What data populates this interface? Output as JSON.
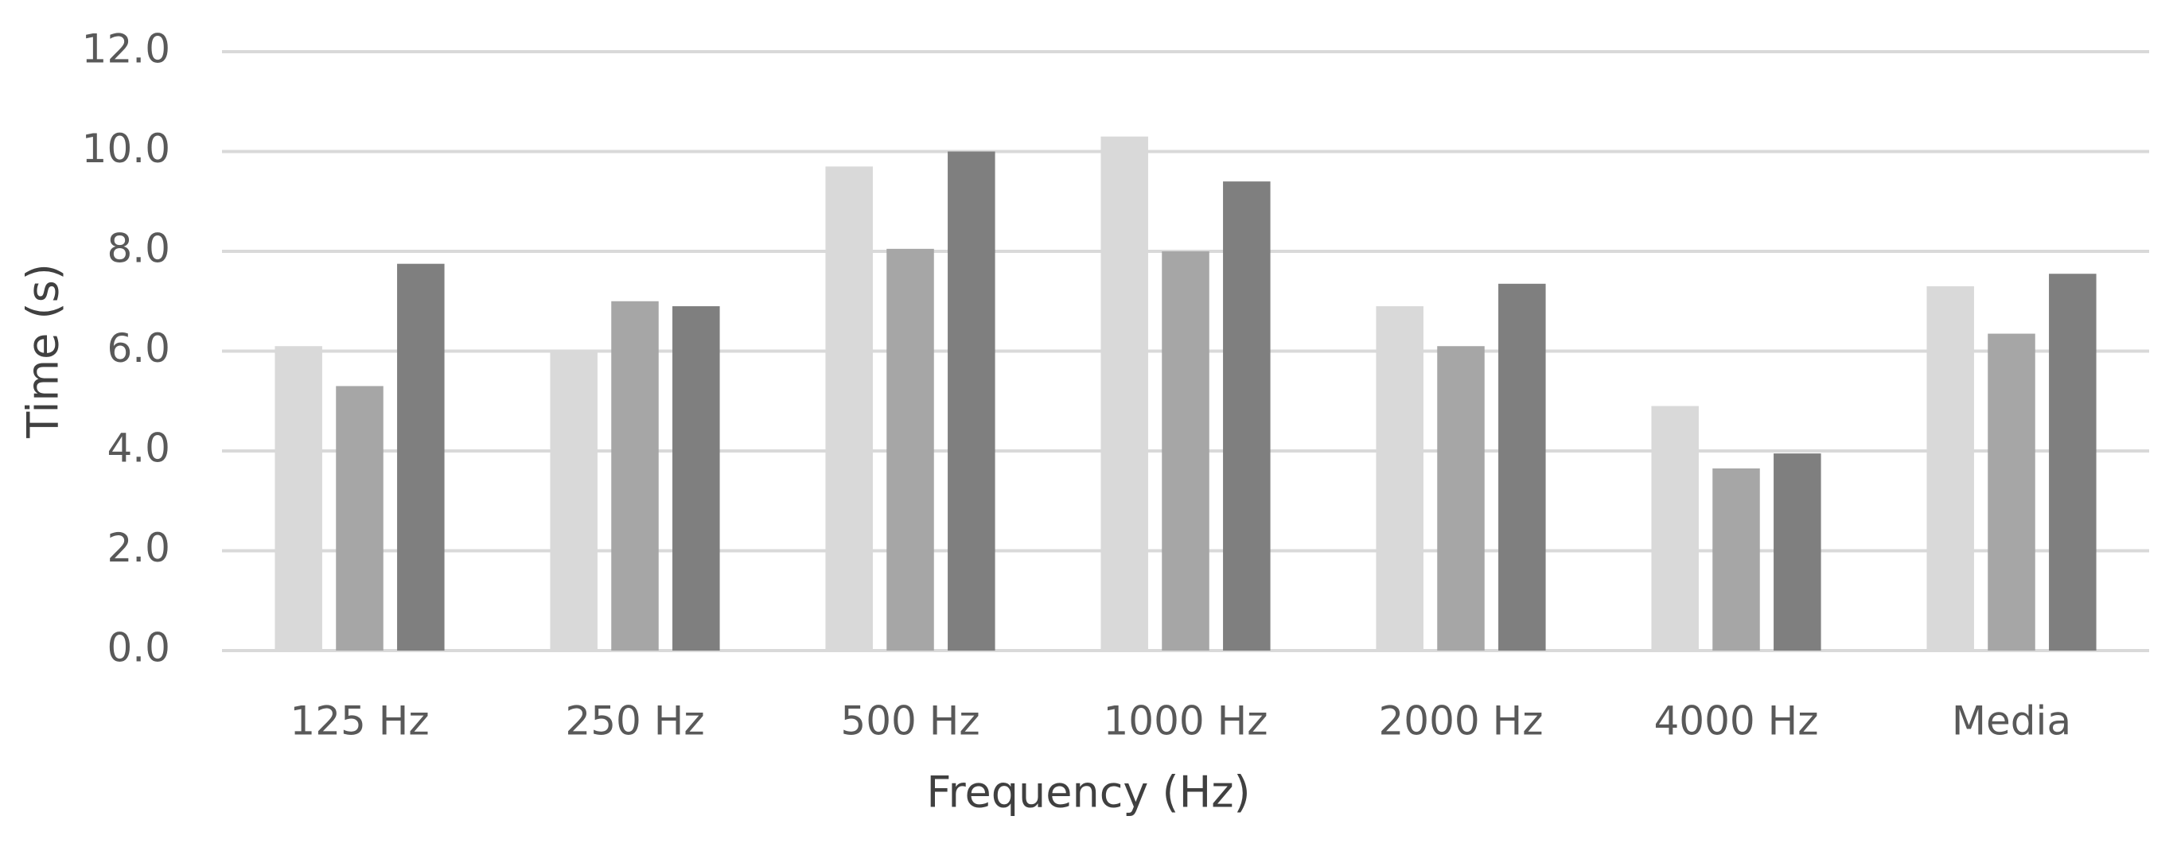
{
  "chart_data": {
    "type": "bar",
    "x_label": "Frequency (Hz)",
    "y_label": "Time (s)",
    "categories": [
      "125 Hz",
      "250 Hz",
      "500 Hz",
      "1000 Hz",
      "2000 Hz",
      "4000 Hz",
      "Media"
    ],
    "series": [
      {
        "color": "#d9d9d9",
        "values": [
          6.1,
          6.0,
          9.7,
          10.3,
          6.9,
          4.9,
          7.3
        ]
      },
      {
        "color": "#a6a6a6",
        "values": [
          5.3,
          7.0,
          8.05,
          8.0,
          6.1,
          3.65,
          6.35
        ]
      },
      {
        "color": "#7f7f7f",
        "values": [
          7.75,
          6.9,
          10.0,
          9.4,
          7.35,
          3.95,
          7.55
        ]
      }
    ],
    "ylim": [
      0,
      12
    ],
    "yticks": [
      {
        "value": 0,
        "label": "0.0"
      },
      {
        "value": 2,
        "label": "2.0"
      },
      {
        "value": 4,
        "label": "4.0"
      },
      {
        "value": 6,
        "label": "6.0"
      },
      {
        "value": 8,
        "label": "8.0"
      },
      {
        "value": 10,
        "label": "10.0"
      },
      {
        "value": 12,
        "label": "12.0"
      }
    ],
    "grid": true
  }
}
